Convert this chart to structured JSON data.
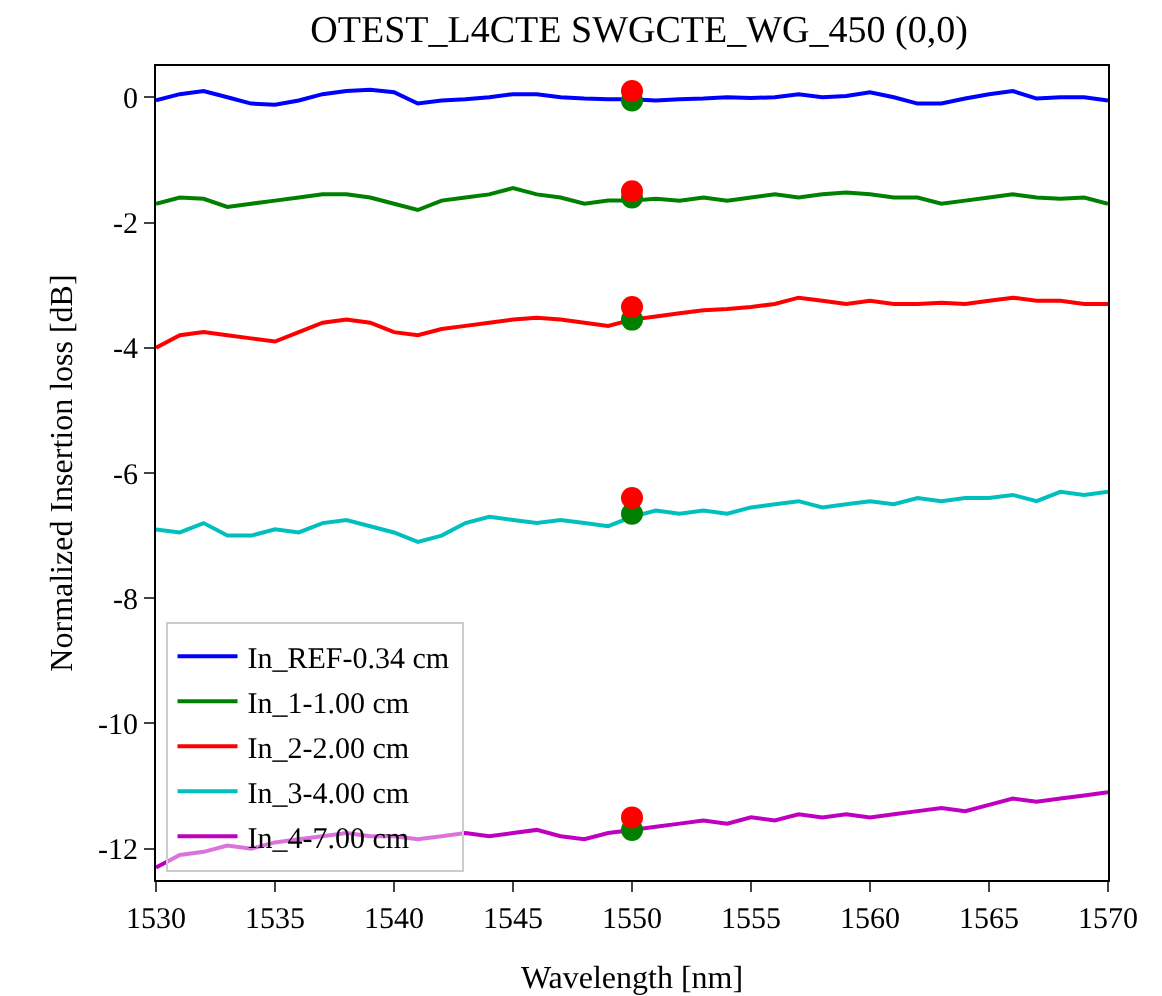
{
  "chart_data": {
    "type": "line",
    "title": "OTEST_L4CTE SWGCTE_WG_450 (0,0)",
    "xlabel": "Wavelength [nm]",
    "ylabel": "Normalized Insertion loss [dB]",
    "x": [
      1530,
      1531,
      1532,
      1533,
      1534,
      1535,
      1536,
      1537,
      1538,
      1539,
      1540,
      1541,
      1542,
      1543,
      1544,
      1545,
      1546,
      1547,
      1548,
      1549,
      1550,
      1551,
      1552,
      1553,
      1554,
      1555,
      1556,
      1557,
      1558,
      1559,
      1560,
      1561,
      1562,
      1563,
      1564,
      1565,
      1566,
      1567,
      1568,
      1569,
      1570
    ],
    "xlim": [
      1530,
      1570
    ],
    "xticks": [
      1530,
      1535,
      1540,
      1545,
      1550,
      1555,
      1560,
      1565,
      1570
    ],
    "ylim": [
      -12.5,
      0.5
    ],
    "yticks": [
      0,
      -2,
      -4,
      -6,
      -8,
      -10,
      -12
    ],
    "grid": false,
    "legend": "bottom left",
    "marker": "none",
    "line_style": "solid",
    "series": [
      {
        "name": "In_REF-0.34 cm",
        "color": "#0000ff",
        "values": [
          -0.05,
          0.05,
          0.1,
          0.0,
          -0.1,
          -0.12,
          -0.05,
          0.05,
          0.1,
          0.12,
          0.08,
          -0.1,
          -0.05,
          -0.03,
          0.0,
          0.05,
          0.05,
          0.0,
          -0.02,
          -0.03,
          -0.03,
          -0.05,
          -0.03,
          -0.02,
          0.0,
          -0.01,
          0.0,
          0.05,
          0.0,
          0.02,
          0.08,
          0.0,
          -0.1,
          -0.1,
          -0.02,
          0.05,
          0.1,
          -0.02,
          0.0,
          0.0,
          -0.05
        ]
      },
      {
        "name": "In_1-1.00 cm",
        "color": "#008000",
        "values": [
          -1.7,
          -1.6,
          -1.62,
          -1.75,
          -1.7,
          -1.65,
          -1.6,
          -1.55,
          -1.55,
          -1.6,
          -1.7,
          -1.8,
          -1.65,
          -1.6,
          -1.55,
          -1.45,
          -1.55,
          -1.6,
          -1.7,
          -1.65,
          -1.65,
          -1.62,
          -1.65,
          -1.6,
          -1.65,
          -1.6,
          -1.55,
          -1.6,
          -1.55,
          -1.52,
          -1.55,
          -1.6,
          -1.6,
          -1.7,
          -1.65,
          -1.6,
          -1.55,
          -1.6,
          -1.62,
          -1.6,
          -1.7
        ]
      },
      {
        "name": "In_2-2.00 cm",
        "color": "#ff0000",
        "values": [
          -4.0,
          -3.8,
          -3.75,
          -3.8,
          -3.85,
          -3.9,
          -3.75,
          -3.6,
          -3.55,
          -3.6,
          -3.75,
          -3.8,
          -3.7,
          -3.65,
          -3.6,
          -3.55,
          -3.52,
          -3.55,
          -3.6,
          -3.65,
          -3.55,
          -3.5,
          -3.45,
          -3.4,
          -3.38,
          -3.35,
          -3.3,
          -3.2,
          -3.25,
          -3.3,
          -3.25,
          -3.3,
          -3.3,
          -3.28,
          -3.3,
          -3.25,
          -3.2,
          -3.25,
          -3.25,
          -3.3,
          -3.3
        ]
      },
      {
        "name": "In_3-4.00 cm",
        "color": "#00bfbf",
        "values": [
          -6.9,
          -6.95,
          -6.8,
          -7.0,
          -7.0,
          -6.9,
          -6.95,
          -6.8,
          -6.75,
          -6.85,
          -6.95,
          -7.1,
          -7.0,
          -6.8,
          -6.7,
          -6.75,
          -6.8,
          -6.75,
          -6.8,
          -6.85,
          -6.7,
          -6.6,
          -6.65,
          -6.6,
          -6.65,
          -6.55,
          -6.5,
          -6.45,
          -6.55,
          -6.5,
          -6.45,
          -6.5,
          -6.4,
          -6.45,
          -6.4,
          -6.4,
          -6.35,
          -6.45,
          -6.3,
          -6.35,
          -6.3
        ]
      },
      {
        "name": "In_4-7.00 cm",
        "color": "#bf00bf",
        "values": [
          -12.3,
          -12.1,
          -12.05,
          -11.95,
          -12.0,
          -11.9,
          -11.85,
          -11.8,
          -11.75,
          -11.8,
          -11.8,
          -11.85,
          -11.8,
          -11.75,
          -11.8,
          -11.75,
          -11.7,
          -11.8,
          -11.85,
          -11.75,
          -11.7,
          -11.65,
          -11.6,
          -11.55,
          -11.6,
          -11.5,
          -11.55,
          -11.45,
          -11.5,
          -11.45,
          -11.5,
          -11.45,
          -11.4,
          -11.35,
          -11.4,
          -11.3,
          -11.2,
          -11.25,
          -11.2,
          -11.15,
          -11.1
        ]
      },
      {
        "type": "scatter",
        "marker": "circle",
        "color": "#008000",
        "values": [
          null,
          null,
          null,
          null,
          null,
          null,
          null,
          null,
          null,
          null,
          null,
          null,
          null,
          null,
          null,
          null,
          null,
          null,
          null,
          null,
          -0.05,
          null,
          null,
          null,
          null,
          null,
          null,
          null,
          null,
          null,
          null,
          null,
          null,
          null,
          null,
          null,
          null,
          null,
          null,
          null,
          null
        ]
      },
      {
        "type": "scatter",
        "marker": "circle",
        "color": "#008000",
        "values": [
          null,
          null,
          null,
          null,
          null,
          null,
          null,
          null,
          null,
          null,
          null,
          null,
          null,
          null,
          null,
          null,
          null,
          null,
          null,
          null,
          -1.6,
          null,
          null,
          null,
          null,
          null,
          null,
          null,
          null,
          null,
          null,
          null,
          null,
          null,
          null,
          null,
          null,
          null,
          null,
          null,
          null
        ]
      },
      {
        "type": "scatter",
        "marker": "circle",
        "color": "#008000",
        "values": [
          null,
          null,
          null,
          null,
          null,
          null,
          null,
          null,
          null,
          null,
          null,
          null,
          null,
          null,
          null,
          null,
          null,
          null,
          null,
          null,
          -3.55,
          null,
          null,
          null,
          null,
          null,
          null,
          null,
          null,
          null,
          null,
          null,
          null,
          null,
          null,
          null,
          null,
          null,
          null,
          null,
          null
        ]
      },
      {
        "type": "scatter",
        "marker": "circle",
        "color": "#008000",
        "values": [
          null,
          null,
          null,
          null,
          null,
          null,
          null,
          null,
          null,
          null,
          null,
          null,
          null,
          null,
          null,
          null,
          null,
          null,
          null,
          null,
          -6.65,
          null,
          null,
          null,
          null,
          null,
          null,
          null,
          null,
          null,
          null,
          null,
          null,
          null,
          null,
          null,
          null,
          null,
          null,
          null,
          null
        ]
      },
      {
        "type": "scatter",
        "marker": "circle",
        "color": "#008000",
        "values": [
          null,
          null,
          null,
          null,
          null,
          null,
          null,
          null,
          null,
          null,
          null,
          null,
          null,
          null,
          null,
          null,
          null,
          null,
          null,
          null,
          -11.7,
          null,
          null,
          null,
          null,
          null,
          null,
          null,
          null,
          null,
          null,
          null,
          null,
          null,
          null,
          null,
          null,
          null,
          null,
          null,
          null
        ]
      },
      {
        "type": "scatter",
        "marker": "circle",
        "color": "#ff0000",
        "values": [
          null,
          null,
          null,
          null,
          null,
          null,
          null,
          null,
          null,
          null,
          null,
          null,
          null,
          null,
          null,
          null,
          null,
          null,
          null,
          null,
          0.1,
          null,
          null,
          null,
          null,
          null,
          null,
          null,
          null,
          null,
          null,
          null,
          null,
          null,
          null,
          null,
          null,
          null,
          null,
          null,
          null
        ]
      },
      {
        "type": "scatter",
        "marker": "circle",
        "color": "#ff0000",
        "values": [
          null,
          null,
          null,
          null,
          null,
          null,
          null,
          null,
          null,
          null,
          null,
          null,
          null,
          null,
          null,
          null,
          null,
          null,
          null,
          null,
          -1.5,
          null,
          null,
          null,
          null,
          null,
          null,
          null,
          null,
          null,
          null,
          null,
          null,
          null,
          null,
          null,
          null,
          null,
          null,
          null,
          null
        ]
      },
      {
        "type": "scatter",
        "marker": "circle",
        "color": "#ff0000",
        "values": [
          null,
          null,
          null,
          null,
          null,
          null,
          null,
          null,
          null,
          null,
          null,
          null,
          null,
          null,
          null,
          null,
          null,
          null,
          null,
          null,
          -3.35,
          null,
          null,
          null,
          null,
          null,
          null,
          null,
          null,
          null,
          null,
          null,
          null,
          null,
          null,
          null,
          null,
          null,
          null,
          null,
          null
        ]
      },
      {
        "type": "scatter",
        "marker": "circle",
        "color": "#ff0000",
        "values": [
          null,
          null,
          null,
          null,
          null,
          null,
          null,
          null,
          null,
          null,
          null,
          null,
          null,
          null,
          null,
          null,
          null,
          null,
          null,
          null,
          -6.4,
          null,
          null,
          null,
          null,
          null,
          null,
          null,
          null,
          null,
          null,
          null,
          null,
          null,
          null,
          null,
          null,
          null,
          null,
          null,
          null
        ]
      },
      {
        "type": "scatter",
        "marker": "circle",
        "color": "#ff0000",
        "values": [
          null,
          null,
          null,
          null,
          null,
          null,
          null,
          null,
          null,
          null,
          null,
          null,
          null,
          null,
          null,
          null,
          null,
          null,
          null,
          null,
          -11.5,
          null,
          null,
          null,
          null,
          null,
          null,
          null,
          null,
          null,
          null,
          null,
          null,
          null,
          null,
          null,
          null,
          null,
          null,
          null,
          null
        ]
      }
    ]
  }
}
